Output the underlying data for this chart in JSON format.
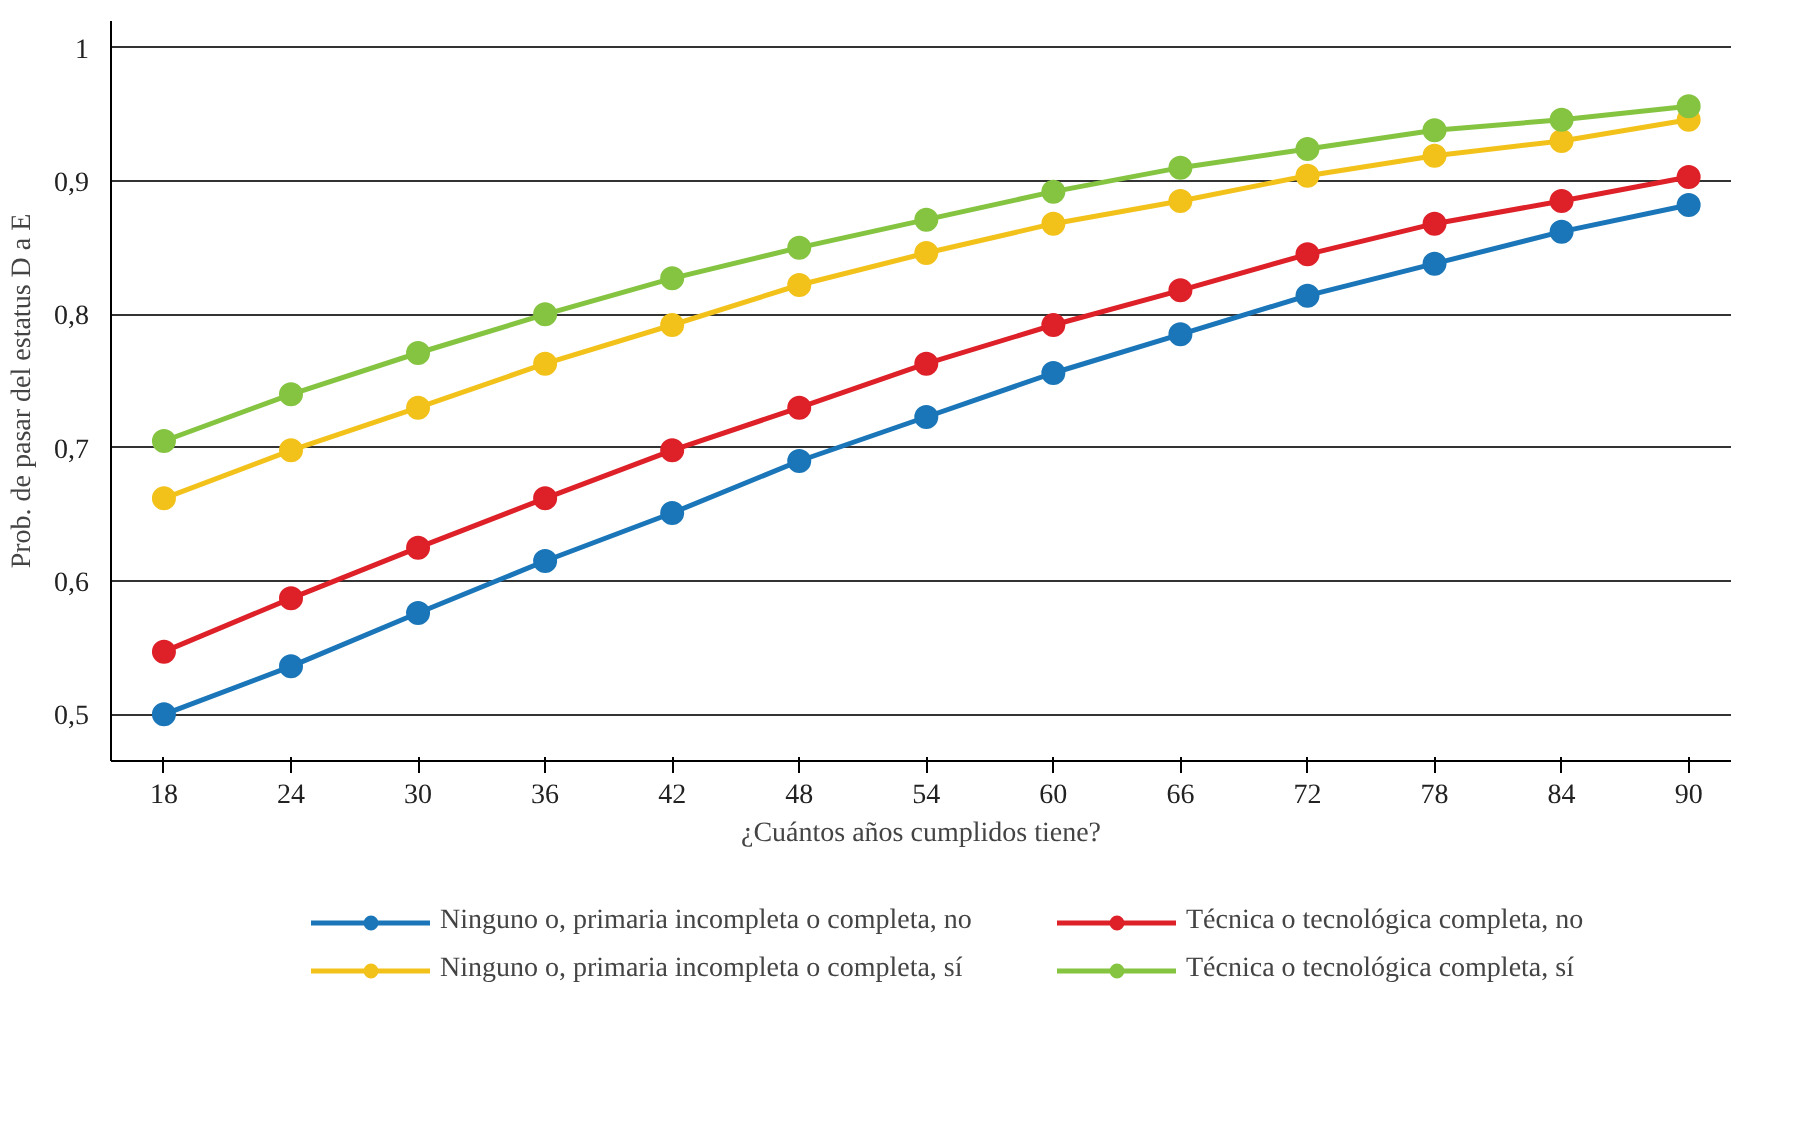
{
  "chart_data": {
    "type": "line",
    "xlabel": "¿Cuántos años cumplidos tiene?",
    "ylabel": "Prob. de pasar del estatus D a E",
    "x": [
      18,
      24,
      30,
      36,
      42,
      48,
      54,
      60,
      66,
      72,
      78,
      84,
      90
    ],
    "series": [
      {
        "name": "Ninguno o, primaria incompleta o completa, no",
        "color": "#1a76b8",
        "values": [
          0.5,
          0.536,
          0.576,
          0.615,
          0.651,
          0.69,
          0.723,
          0.756,
          0.785,
          0.814,
          0.838,
          0.862,
          0.882
        ]
      },
      {
        "name": "Ninguno o, primaria incompleta o completa, sí",
        "color": "#f2c21b",
        "values": [
          0.662,
          0.698,
          0.73,
          0.763,
          0.792,
          0.822,
          0.846,
          0.868,
          0.885,
          0.904,
          0.919,
          0.93,
          0.946
        ]
      },
      {
        "name": "Técnica o tecnológica completa, no",
        "color": "#de2028",
        "values": [
          0.547,
          0.587,
          0.625,
          0.662,
          0.698,
          0.73,
          0.763,
          0.792,
          0.818,
          0.845,
          0.868,
          0.885,
          0.903
        ]
      },
      {
        "name": "Técnica o tecnológica completa, sí",
        "color": "#85c441",
        "values": [
          0.705,
          0.74,
          0.771,
          0.8,
          0.827,
          0.85,
          0.871,
          0.892,
          0.91,
          0.924,
          0.938,
          0.946,
          0.956
        ]
      }
    ],
    "xlim": [
      15.5,
      92
    ],
    "xticks": [
      18,
      24,
      30,
      36,
      42,
      48,
      54,
      60,
      66,
      72,
      78,
      84,
      90
    ],
    "ylim": [
      0.465,
      1.02
    ],
    "yticks": [
      {
        "value": 0.5,
        "label": "0,5"
      },
      {
        "value": 0.6,
        "label": "0,6"
      },
      {
        "value": 0.7,
        "label": "0,7"
      },
      {
        "value": 0.8,
        "label": "0,8"
      },
      {
        "value": 0.9,
        "label": "0,9"
      },
      {
        "value": 1,
        "label": "1"
      }
    ],
    "grid": "y",
    "legend": "bottom",
    "marker": "circle",
    "line_style": "solid"
  }
}
